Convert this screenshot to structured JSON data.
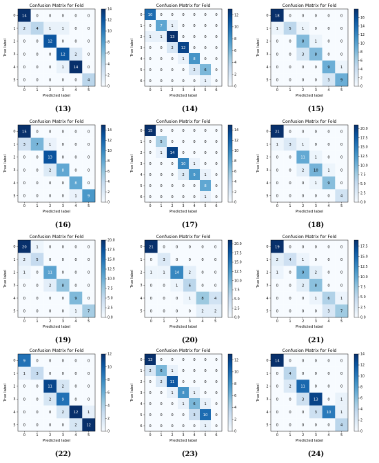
{
  "colors": {
    "low": "#f7fbff",
    "high": "#08306b",
    "grid_line": "#ffffff"
  },
  "chart_data": [
    {
      "type": "heatmap",
      "caption": "(13)",
      "title": "Confusion Matrix for Fold",
      "xlabel": "Predicted label",
      "ylabel": "True label",
      "labels": [
        "0",
        "1",
        "2",
        "3",
        "4",
        "5"
      ],
      "matrix": [
        [
          14,
          0,
          0,
          0,
          0,
          0
        ],
        [
          2,
          4,
          1,
          1,
          0,
          0
        ],
        [
          0,
          0,
          12,
          0,
          0,
          0
        ],
        [
          0,
          0,
          0,
          12,
          2,
          0
        ],
        [
          0,
          0,
          0,
          1,
          14,
          0
        ],
        [
          0,
          0,
          0,
          0,
          0,
          4
        ]
      ],
      "colorbar": {
        "min": 0,
        "max": 14,
        "ticks": [
          "0",
          "2",
          "4",
          "6",
          "8",
          "10",
          "12",
          "14"
        ]
      }
    },
    {
      "type": "heatmap",
      "caption": "(14)",
      "title": "Confusion Matrix for Fold",
      "xlabel": "Predicted label",
      "ylabel": "True label",
      "labels": [
        "0",
        "1",
        "2",
        "3",
        "4",
        "5",
        "6"
      ],
      "matrix": [
        [
          10,
          0,
          0,
          0,
          0,
          0,
          0
        ],
        [
          0,
          7,
          1,
          0,
          0,
          0,
          0
        ],
        [
          1,
          1,
          13,
          0,
          0,
          0,
          0
        ],
        [
          0,
          0,
          2,
          12,
          0,
          0,
          0
        ],
        [
          0,
          0,
          0,
          1,
          8,
          0,
          0
        ],
        [
          0,
          0,
          0,
          0,
          2,
          6,
          0
        ],
        [
          0,
          0,
          0,
          0,
          0,
          1,
          0
        ]
      ],
      "colorbar": {
        "min": 0,
        "max": 13,
        "ticks": [
          "0",
          "2",
          "4",
          "6",
          "8",
          "10",
          "12"
        ]
      }
    },
    {
      "type": "heatmap",
      "caption": "(15)",
      "title": "Confusion Matrix for Fold",
      "xlabel": "Predicted label",
      "ylabel": "True label",
      "labels": [
        "0",
        "1",
        "2",
        "3",
        "4",
        "5"
      ],
      "matrix": [
        [
          18,
          0,
          0,
          0,
          0,
          0
        ],
        [
          1,
          5,
          1,
          0,
          0,
          0
        ],
        [
          0,
          0,
          8,
          1,
          0,
          0
        ],
        [
          0,
          0,
          3,
          8,
          0,
          0
        ],
        [
          0,
          0,
          0,
          0,
          9,
          1
        ],
        [
          0,
          0,
          0,
          0,
          3,
          9
        ]
      ],
      "colorbar": {
        "min": 0,
        "max": 18,
        "ticks": [
          "0",
          "2",
          "4",
          "6",
          "8",
          "10",
          "12",
          "14",
          "16"
        ]
      }
    },
    {
      "type": "heatmap",
      "caption": "(16)",
      "title": "Confusion Matrix for Fold",
      "xlabel": "Predicted label",
      "ylabel": "True label",
      "labels": [
        "0",
        "1",
        "2",
        "3",
        "4",
        "5"
      ],
      "matrix": [
        [
          15,
          0,
          0,
          0,
          0,
          0
        ],
        [
          3,
          7,
          1,
          0,
          0,
          0
        ],
        [
          0,
          0,
          13,
          0,
          0,
          0
        ],
        [
          0,
          0,
          2,
          8,
          0,
          0
        ],
        [
          0,
          0,
          0,
          0,
          8,
          0
        ],
        [
          0,
          0,
          0,
          0,
          1,
          9
        ]
      ],
      "colorbar": {
        "min": 0,
        "max": 15,
        "ticks": [
          "0",
          "2",
          "4",
          "6",
          "8",
          "10",
          "12",
          "14"
        ]
      }
    },
    {
      "type": "heatmap",
      "caption": "(17)",
      "title": "Confusion Matrix for Fold",
      "xlabel": "Predicted label",
      "ylabel": "True label",
      "labels": [
        "0",
        "1",
        "2",
        "3",
        "4",
        "5",
        "6"
      ],
      "matrix": [
        [
          15,
          0,
          0,
          0,
          0,
          0,
          0
        ],
        [
          0,
          5,
          0,
          0,
          0,
          0,
          0
        ],
        [
          0,
          1,
          14,
          0,
          0,
          0,
          0
        ],
        [
          0,
          0,
          0,
          10,
          1,
          0,
          0
        ],
        [
          0,
          0,
          0,
          2,
          9,
          1,
          0
        ],
        [
          0,
          0,
          0,
          0,
          0,
          8,
          0
        ],
        [
          0,
          0,
          0,
          0,
          0,
          1,
          0
        ]
      ],
      "colorbar": {
        "min": 0,
        "max": 15,
        "ticks": [
          "0",
          "2",
          "4",
          "6",
          "8",
          "10",
          "12",
          "14"
        ]
      }
    },
    {
      "type": "heatmap",
      "caption": "(18)",
      "title": "Confusion Matrix for Fold",
      "xlabel": "Predicted label",
      "ylabel": "True label",
      "labels": [
        "0",
        "1",
        "2",
        "3",
        "4",
        "5"
      ],
      "matrix": [
        [
          21,
          0,
          0,
          0,
          0,
          0
        ],
        [
          1,
          3,
          1,
          0,
          0,
          0
        ],
        [
          0,
          0,
          11,
          1,
          0,
          0
        ],
        [
          0,
          0,
          2,
          10,
          1,
          0
        ],
        [
          0,
          0,
          0,
          1,
          9,
          0
        ],
        [
          0,
          0,
          0,
          0,
          0,
          4
        ]
      ],
      "colorbar": {
        "min": 0,
        "max": 21,
        "ticks": [
          "0.0",
          "2.5",
          "5.0",
          "7.5",
          "10.0",
          "12.5",
          "15.0",
          "17.5",
          "20.0"
        ]
      }
    },
    {
      "type": "heatmap",
      "caption": "(19)",
      "title": "Confusion Matrix for Fold",
      "xlabel": "Predicted label",
      "ylabel": "True label",
      "labels": [
        "0",
        "1",
        "2",
        "3",
        "4",
        "5"
      ],
      "matrix": [
        [
          20,
          1,
          0,
          0,
          0,
          0
        ],
        [
          2,
          5,
          0,
          0,
          0,
          0
        ],
        [
          1,
          0,
          11,
          0,
          0,
          0
        ],
        [
          0,
          0,
          2,
          8,
          0,
          0
        ],
        [
          0,
          0,
          0,
          0,
          9,
          0
        ],
        [
          0,
          0,
          0,
          0,
          1,
          7
        ]
      ],
      "colorbar": {
        "min": 0,
        "max": 20,
        "ticks": [
          "0.0",
          "2.5",
          "5.0",
          "7.5",
          "10.0",
          "12.5",
          "15.0",
          "17.5",
          "20.0"
        ]
      }
    },
    {
      "type": "heatmap",
      "caption": "(20)",
      "title": "Confusion Matrix for Fold",
      "xlabel": "Predicted label",
      "ylabel": "True label",
      "labels": [
        "0",
        "1",
        "2",
        "3",
        "4",
        "5"
      ],
      "matrix": [
        [
          21,
          0,
          0,
          0,
          0,
          0
        ],
        [
          0,
          3,
          0,
          0,
          0,
          0
        ],
        [
          1,
          1,
          14,
          2,
          0,
          0
        ],
        [
          0,
          0,
          1,
          6,
          0,
          0
        ],
        [
          0,
          0,
          0,
          1,
          8,
          4
        ],
        [
          0,
          0,
          0,
          0,
          2,
          2
        ]
      ],
      "colorbar": {
        "min": 0,
        "max": 21,
        "ticks": [
          "0.0",
          "2.5",
          "5.0",
          "7.5",
          "10.0",
          "12.5",
          "15.0",
          "17.5",
          "20.0"
        ]
      }
    },
    {
      "type": "heatmap",
      "caption": "(21)",
      "title": "Confusion Matrix for Fold",
      "xlabel": "Predicted label",
      "ylabel": "True label",
      "labels": [
        "0",
        "1",
        "2",
        "3",
        "4",
        "5"
      ],
      "matrix": [
        [
          19,
          0,
          0,
          0,
          0,
          0
        ],
        [
          2,
          4,
          1,
          0,
          0,
          0
        ],
        [
          1,
          0,
          9,
          2,
          0,
          0
        ],
        [
          0,
          0,
          2,
          8,
          0,
          0
        ],
        [
          0,
          0,
          0,
          1,
          6,
          1
        ],
        [
          0,
          0,
          0,
          0,
          3,
          7
        ]
      ],
      "colorbar": {
        "min": 0,
        "max": 19,
        "ticks": [
          "0.0",
          "2.5",
          "5.0",
          "7.5",
          "10.0",
          "12.5",
          "15.0",
          "17.5"
        ]
      }
    },
    {
      "type": "heatmap",
      "caption": "(22)",
      "title": "Confusion Matrix for Fold",
      "xlabel": "Predicted label",
      "ylabel": "True label",
      "labels": [
        "0",
        "1",
        "2",
        "3",
        "4",
        "5"
      ],
      "matrix": [
        [
          9,
          0,
          0,
          0,
          0,
          0
        ],
        [
          1,
          3,
          0,
          0,
          0,
          0
        ],
        [
          0,
          0,
          11,
          2,
          0,
          0
        ],
        [
          0,
          0,
          2,
          9,
          0,
          0
        ],
        [
          0,
          0,
          0,
          2,
          12,
          1
        ],
        [
          0,
          0,
          0,
          0,
          2,
          12
        ]
      ],
      "colorbar": {
        "min": 0,
        "max": 12,
        "ticks": [
          "0",
          "2",
          "4",
          "6",
          "8",
          "10",
          "12"
        ]
      }
    },
    {
      "type": "heatmap",
      "caption": "(23)",
      "title": "Confusion Matrix for Fold",
      "xlabel": "Predicted label",
      "ylabel": "True label",
      "labels": [
        "0",
        "1",
        "2",
        "3",
        "4",
        "5",
        "6"
      ],
      "matrix": [
        [
          13,
          0,
          0,
          0,
          0,
          0,
          0
        ],
        [
          2,
          6,
          1,
          0,
          0,
          0,
          0
        ],
        [
          0,
          2,
          11,
          0,
          0,
          0,
          0
        ],
        [
          0,
          0,
          1,
          8,
          1,
          0,
          0
        ],
        [
          0,
          0,
          0,
          1,
          6,
          1,
          0
        ],
        [
          0,
          0,
          0,
          0,
          3,
          10,
          0
        ],
        [
          0,
          0,
          0,
          0,
          0,
          1,
          0
        ]
      ],
      "colorbar": {
        "min": 0,
        "max": 13,
        "ticks": [
          "0",
          "2",
          "4",
          "6",
          "8",
          "10",
          "12"
        ]
      }
    },
    {
      "type": "heatmap",
      "caption": "(24)",
      "title": "Confusion Matrix for Fold",
      "xlabel": "Predicted label",
      "ylabel": "True label",
      "labels": [
        "0",
        "1",
        "2",
        "3",
        "4",
        "5"
      ],
      "matrix": [
        [
          14,
          0,
          0,
          0,
          0,
          0
        ],
        [
          0,
          4,
          0,
          0,
          0,
          0
        ],
        [
          0,
          2,
          11,
          0,
          0,
          0
        ],
        [
          0,
          0,
          3,
          13,
          0,
          1
        ],
        [
          0,
          0,
          0,
          3,
          10,
          1
        ],
        [
          0,
          0,
          0,
          0,
          0,
          4
        ]
      ],
      "colorbar": {
        "min": 0,
        "max": 14,
        "ticks": [
          "0",
          "2",
          "4",
          "6",
          "8",
          "10",
          "12",
          "14"
        ]
      }
    }
  ]
}
